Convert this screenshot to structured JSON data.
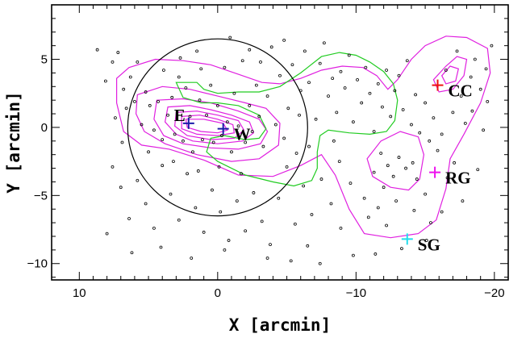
{
  "chart_data": {
    "type": "scatter",
    "xlabel": "X [arcmin]",
    "ylabel": "Y [arcmin]",
    "xlim": [
      12,
      -21
    ],
    "ylim": [
      -11.2,
      9
    ],
    "x_ticks": [
      10,
      0,
      -10,
      -20
    ],
    "x_tick_labels": [
      "10",
      "0",
      "−10",
      "−20"
    ],
    "y_ticks": [
      5,
      0,
      -5,
      -10
    ],
    "y_tick_labels": [
      "5",
      "0",
      "−5",
      "−10"
    ],
    "grid": false,
    "circle": {
      "center": [
        0,
        0
      ],
      "radius": 6.5,
      "color": "#000000"
    },
    "markers": [
      {
        "label": "E",
        "x": 2.1,
        "y": 0.3,
        "color": "#1a1aa8"
      },
      {
        "label": "W",
        "x": -0.4,
        "y": -0.1,
        "color": "#1a1aa8"
      },
      {
        "label": "CC",
        "x": -15.9,
        "y": 3.1,
        "color": "#ee1111"
      },
      {
        "label": "RG",
        "x": -15.7,
        "y": -3.3,
        "color": "#ee11ee"
      },
      {
        "label": "SG",
        "x": -13.7,
        "y": -8.2,
        "color": "#22ddee"
      }
    ],
    "green_contour": [
      [
        3.0,
        3.3
      ],
      [
        1.5,
        3.3
      ],
      [
        1.0,
        2.8
      ],
      [
        0.0,
        2.5
      ],
      [
        -1.5,
        2.6
      ],
      [
        -3.0,
        2.6
      ],
      [
        -4.5,
        3.0
      ],
      [
        -6.0,
        4.0
      ],
      [
        -7.5,
        5.2
      ],
      [
        -8.8,
        5.5
      ],
      [
        -10.0,
        5.3
      ],
      [
        -11.0,
        4.8
      ],
      [
        -12.0,
        4.1
      ],
      [
        -12.7,
        3.2
      ],
      [
        -13.0,
        2.0
      ],
      [
        -12.8,
        0.5
      ],
      [
        -12.2,
        -0.3
      ],
      [
        -11.0,
        -0.5
      ],
      [
        -9.5,
        -0.4
      ],
      [
        -8.0,
        -0.2
      ],
      [
        -7.4,
        -0.6
      ],
      [
        -7.2,
        -1.8
      ],
      [
        -7.2,
        -3.0
      ],
      [
        -6.8,
        -3.9
      ],
      [
        -5.5,
        -4.3
      ],
      [
        -4.0,
        -4.0
      ],
      [
        -2.0,
        -3.5
      ],
      [
        0.0,
        -2.5
      ],
      [
        0.8,
        -1.8
      ],
      [
        0.5,
        -0.8
      ],
      [
        -0.5,
        -0.6
      ],
      [
        -2.0,
        -0.9
      ],
      [
        -3.0,
        -0.8
      ],
      [
        -3.5,
        -0.1
      ],
      [
        -3.0,
        0.9
      ],
      [
        -1.5,
        1.6
      ],
      [
        0.0,
        1.8
      ],
      [
        1.2,
        1.8
      ],
      [
        2.5,
        2.2
      ],
      [
        3.0,
        3.3
      ]
    ],
    "magenta_contours": [
      [
        [
          6.4,
          4.4
        ],
        [
          4.5,
          5.0
        ],
        [
          2.5,
          4.9
        ],
        [
          0.5,
          4.6
        ],
        [
          -1.5,
          3.9
        ],
        [
          -3.2,
          3.3
        ],
        [
          -4.5,
          3.2
        ],
        [
          -6.0,
          3.6
        ],
        [
          -7.5,
          4.2
        ],
        [
          -9.0,
          4.5
        ],
        [
          -10.5,
          4.4
        ],
        [
          -11.5,
          3.8
        ],
        [
          -12.3,
          2.8
        ],
        [
          -13.0,
          3.5
        ],
        [
          -14.0,
          5.0
        ],
        [
          -15.0,
          6.0
        ],
        [
          -16.5,
          6.7
        ],
        [
          -18.0,
          6.6
        ],
        [
          -19.5,
          5.8
        ],
        [
          -19.7,
          4.0
        ],
        [
          -19.0,
          1.8
        ],
        [
          -17.8,
          -0.5
        ],
        [
          -16.8,
          -2.3
        ],
        [
          -16.5,
          -4.5
        ],
        [
          -15.8,
          -6.8
        ],
        [
          -14.5,
          -7.8
        ],
        [
          -12.5,
          -8.1
        ],
        [
          -10.6,
          -7.8
        ],
        [
          -9.5,
          -6.0
        ],
        [
          -8.5,
          -3.5
        ],
        [
          -7.5,
          -2.0
        ],
        [
          -6.0,
          -2.8
        ],
        [
          -4.0,
          -3.6
        ],
        [
          -1.5,
          -3.5
        ],
        [
          1.0,
          -2.4
        ],
        [
          3.5,
          -1.6
        ],
        [
          5.5,
          -1.3
        ],
        [
          6.8,
          -0.3
        ],
        [
          7.3,
          1.8
        ],
        [
          7.3,
          3.6
        ],
        [
          6.4,
          4.4
        ]
      ],
      [
        [
          5.8,
          2.4
        ],
        [
          4.0,
          3.0
        ],
        [
          2.0,
          2.8
        ],
        [
          0.0,
          2.3
        ],
        [
          -2.0,
          1.8
        ],
        [
          -3.5,
          1.4
        ],
        [
          -4.5,
          0.3
        ],
        [
          -4.4,
          -1.3
        ],
        [
          -3.0,
          -2.3
        ],
        [
          -1.0,
          -2.5
        ],
        [
          1.5,
          -2.0
        ],
        [
          3.8,
          -1.2
        ],
        [
          5.3,
          -0.3
        ],
        [
          5.9,
          1.0
        ],
        [
          5.8,
          2.4
        ]
      ],
      [
        [
          4.4,
          2.0
        ],
        [
          2.5,
          2.1
        ],
        [
          0.5,
          1.8
        ],
        [
          -1.5,
          1.2
        ],
        [
          -3.0,
          0.6
        ],
        [
          -3.6,
          -0.3
        ],
        [
          -3.1,
          -1.2
        ],
        [
          -1.5,
          -1.6
        ],
        [
          0.5,
          -1.5
        ],
        [
          2.5,
          -1.2
        ],
        [
          3.9,
          -0.6
        ],
        [
          4.6,
          0.6
        ],
        [
          4.4,
          2.0
        ]
      ],
      [
        [
          3.6,
          1.5
        ],
        [
          2.0,
          1.6
        ],
        [
          0.5,
          1.3
        ],
        [
          -1.0,
          0.9
        ],
        [
          -2.3,
          0.4
        ],
        [
          -2.6,
          -0.4
        ],
        [
          -1.8,
          -1.0
        ],
        [
          0.0,
          -1.2
        ],
        [
          1.8,
          -1.0
        ],
        [
          3.0,
          -0.5
        ],
        [
          3.8,
          0.4
        ],
        [
          3.6,
          1.5
        ]
      ],
      [
        [
          3.0,
          1.1
        ],
        [
          1.5,
          1.2
        ],
        [
          0.0,
          0.9
        ],
        [
          -1.5,
          0.5
        ],
        [
          -1.9,
          -0.2
        ],
        [
          -1.2,
          -0.8
        ],
        [
          0.5,
          -0.9
        ],
        [
          2.2,
          -0.6
        ],
        [
          3.1,
          0.1
        ],
        [
          3.0,
          1.1
        ]
      ],
      [
        [
          2.6,
          0.8
        ],
        [
          1.3,
          0.9
        ],
        [
          0.0,
          0.6
        ],
        [
          -1.1,
          0.2
        ],
        [
          -1.2,
          -0.4
        ],
        [
          0.0,
          -0.6
        ],
        [
          1.5,
          -0.5
        ],
        [
          2.6,
          -0.1
        ],
        [
          2.6,
          0.8
        ]
      ],
      [
        [
          2.3,
          0.6
        ],
        [
          1.0,
          0.6
        ],
        [
          -0.4,
          0.3
        ],
        [
          -0.7,
          -0.2
        ],
        [
          0.0,
          -0.4
        ],
        [
          1.2,
          -0.3
        ],
        [
          2.2,
          0.0
        ],
        [
          2.3,
          0.6
        ]
      ],
      [
        [
          -10.8,
          -2.3
        ],
        [
          -11.8,
          -1.0
        ],
        [
          -13.2,
          -0.3
        ],
        [
          -14.5,
          -0.7
        ],
        [
          -14.9,
          -2.0
        ],
        [
          -14.6,
          -3.8
        ],
        [
          -13.8,
          -4.6
        ],
        [
          -12.5,
          -4.4
        ],
        [
          -11.2,
          -3.6
        ],
        [
          -10.8,
          -2.3
        ]
      ],
      [
        [
          -15.6,
          3.5
        ],
        [
          -16.5,
          4.5
        ],
        [
          -17.3,
          5.2
        ],
        [
          -18.0,
          5.0
        ],
        [
          -17.8,
          3.8
        ],
        [
          -17.0,
          2.8
        ],
        [
          -16.0,
          2.6
        ],
        [
          -15.6,
          3.5
        ]
      ],
      [
        [
          -16.2,
          3.8
        ],
        [
          -16.8,
          4.5
        ],
        [
          -17.4,
          4.3
        ],
        [
          -17.2,
          3.4
        ],
        [
          -16.5,
          3.2
        ],
        [
          -16.2,
          3.8
        ]
      ]
    ],
    "points": [
      [
        8.7,
        5.7
      ],
      [
        7.6,
        4.8
      ],
      [
        7.2,
        5.5
      ],
      [
        6.8,
        2.8
      ],
      [
        6.6,
        1.4
      ],
      [
        6.0,
        1.9
      ],
      [
        5.5,
        0.2
      ],
      [
        5.2,
        2.6
      ],
      [
        4.9,
        1.6
      ],
      [
        4.6,
        -0.2
      ],
      [
        4.3,
        1.9
      ],
      [
        4.0,
        -0.9
      ],
      [
        3.6,
        0.9
      ],
      [
        3.3,
        2.2
      ],
      [
        3.1,
        -0.5
      ],
      [
        2.8,
        3.7
      ],
      [
        2.5,
        -1.0
      ],
      [
        2.3,
        2.9
      ],
      [
        2.0,
        0.8
      ],
      [
        1.8,
        -1.8
      ],
      [
        1.5,
        5.6
      ],
      [
        1.3,
        2.0
      ],
      [
        1.1,
        -0.9
      ],
      [
        0.8,
        0.9
      ],
      [
        0.5,
        3.1
      ],
      [
        0.3,
        -1.1
      ],
      [
        0.0,
        1.6
      ],
      [
        -0.3,
        -0.6
      ],
      [
        -0.5,
        4.4
      ],
      [
        -0.7,
        0.4
      ],
      [
        -1.0,
        -1.8
      ],
      [
        -1.2,
        2.5
      ],
      [
        -1.5,
        0.1
      ],
      [
        -1.8,
        4.9
      ],
      [
        -2.0,
        -1.1
      ],
      [
        -2.3,
        1.6
      ],
      [
        -2.5,
        -0.3
      ],
      [
        -2.8,
        3.1
      ],
      [
        -3.0,
        0.8
      ],
      [
        -3.3,
        -1.4
      ],
      [
        -3.6,
        2.3
      ],
      [
        -3.9,
        5.9
      ],
      [
        -4.2,
        0.2
      ],
      [
        -4.5,
        3.8
      ],
      [
        -4.8,
        -0.8
      ],
      [
        -5.1,
        1.4
      ],
      [
        -5.4,
        4.6
      ],
      [
        -5.7,
        -1.9
      ],
      [
        -6.0,
        2.7
      ],
      [
        -7.4,
        4.7
      ],
      [
        -7.7,
        6.2
      ],
      [
        -8.0,
        2.3
      ],
      [
        -8.3,
        3.6
      ],
      [
        -8.6,
        1.1
      ],
      [
        -8.9,
        4.1
      ],
      [
        -9.2,
        2.9
      ],
      [
        -9.5,
        5.3
      ],
      [
        -9.8,
        0.4
      ],
      [
        -10.1,
        3.5
      ],
      [
        -10.4,
        1.8
      ],
      [
        -10.7,
        4.4
      ],
      [
        -11.0,
        2.5
      ],
      [
        -11.3,
        -0.3
      ],
      [
        -11.6,
        3.2
      ],
      [
        -11.9,
        1.5
      ],
      [
        -12.2,
        4.2
      ],
      [
        -12.5,
        0.8
      ],
      [
        -12.8,
        2.7
      ],
      [
        -13.1,
        3.8
      ],
      [
        -13.4,
        1.3
      ],
      [
        -13.7,
        4.9
      ],
      [
        -14.0,
        0.2
      ],
      [
        -14.3,
        2.4
      ],
      [
        -14.6,
        -0.4
      ],
      [
        -15.0,
        1.8
      ],
      [
        -15.3,
        -1.0
      ],
      [
        -15.6,
        0.7
      ],
      [
        -15.9,
        -1.7
      ],
      [
        -16.2,
        -0.5
      ],
      [
        -16.5,
        4.2
      ],
      [
        -17.0,
        1.1
      ],
      [
        -17.3,
        5.6
      ],
      [
        -17.6,
        2.3
      ],
      [
        -17.9,
        0.3
      ],
      [
        -18.3,
        3.7
      ],
      [
        -18.6,
        5.0
      ],
      [
        -19.0,
        2.8
      ],
      [
        -19.4,
        4.3
      ],
      [
        -19.8,
        6.0
      ],
      [
        -11.8,
        -1.9
      ],
      [
        -12.3,
        -2.8
      ],
      [
        -12.7,
        -3.6
      ],
      [
        -13.1,
        -2.2
      ],
      [
        -13.6,
        -3.0
      ],
      [
        -14.1,
        -2.6
      ],
      [
        -14.4,
        -3.8
      ],
      [
        -12.0,
        -4.4
      ],
      [
        -11.3,
        -3.3
      ],
      [
        -10.6,
        -5.2
      ],
      [
        -11.6,
        -5.9
      ],
      [
        -12.9,
        -5.4
      ],
      [
        -14.2,
        -6.1
      ],
      [
        -15.0,
        -4.9
      ],
      [
        -15.4,
        -7.0
      ],
      [
        -12.2,
        -7.2
      ],
      [
        -10.9,
        -6.6
      ],
      [
        -9.6,
        -4.1
      ],
      [
        -8.8,
        -2.5
      ],
      [
        -8.2,
        -5.6
      ],
      [
        -7.5,
        -3.8
      ],
      [
        -6.8,
        -6.4
      ],
      [
        -6.2,
        -4.3
      ],
      [
        -5.6,
        -7.1
      ],
      [
        -5.0,
        -2.9
      ],
      [
        -4.4,
        -5.2
      ],
      [
        -3.8,
        -8.6
      ],
      [
        -3.2,
        -6.9
      ],
      [
        -2.6,
        -4.8
      ],
      [
        -2.0,
        -7.6
      ],
      [
        -1.4,
        -5.4
      ],
      [
        -0.8,
        -8.3
      ],
      [
        -0.2,
        -6.2
      ],
      [
        0.4,
        -4.6
      ],
      [
        1.0,
        -7.7
      ],
      [
        1.6,
        -5.9
      ],
      [
        2.2,
        -3.4
      ],
      [
        2.8,
        -6.8
      ],
      [
        3.4,
        -4.9
      ],
      [
        4.0,
        -2.8
      ],
      [
        4.6,
        -7.4
      ],
      [
        5.2,
        -5.6
      ],
      [
        5.8,
        -3.9
      ],
      [
        6.4,
        -6.7
      ],
      [
        7.0,
        -4.4
      ],
      [
        7.6,
        -2.9
      ],
      [
        8.0,
        -7.8
      ],
      [
        6.2,
        -9.2
      ],
      [
        4.1,
        -8.8
      ],
      [
        1.9,
        -9.6
      ],
      [
        -0.5,
        -9.0
      ],
      [
        -3.6,
        -9.6
      ],
      [
        -6.5,
        -8.7
      ],
      [
        -8.9,
        -7.4
      ],
      [
        -9.8,
        -9.4
      ],
      [
        -7.4,
        -10.0
      ],
      [
        -5.3,
        -9.8
      ],
      [
        -8.4,
        -1.0
      ],
      [
        -7.1,
        0.6
      ],
      [
        -6.6,
        -1.4
      ],
      [
        -5.9,
        0.9
      ],
      [
        -0.9,
        6.6
      ],
      [
        1.2,
        4.3
      ],
      [
        2.7,
        5.1
      ],
      [
        3.9,
        4.2
      ],
      [
        5.8,
        4.8
      ],
      [
        6.3,
        3.7
      ],
      [
        8.1,
        3.4
      ],
      [
        -2.3,
        5.7
      ],
      [
        -3.1,
        4.8
      ],
      [
        -4.8,
        6.4
      ],
      [
        -6.3,
        5.6
      ],
      [
        -6.6,
        3.3
      ],
      [
        -0.1,
        -2.9
      ],
      [
        1.4,
        -3.2
      ],
      [
        -1.7,
        -3.4
      ],
      [
        3.2,
        -2.5
      ],
      [
        5.0,
        -1.8
      ],
      [
        6.9,
        -1.1
      ],
      [
        7.4,
        0.7
      ],
      [
        -18.4,
        1.2
      ],
      [
        -19.2,
        -0.2
      ],
      [
        -17.1,
        -2.6
      ],
      [
        -16.6,
        -3.7
      ],
      [
        -17.7,
        -5.4
      ],
      [
        -16.2,
        -6.2
      ],
      [
        -15.1,
        -8.3
      ],
      [
        -13.3,
        -8.9
      ],
      [
        -11.4,
        -9.3
      ],
      [
        -18.8,
        -3.1
      ],
      [
        -19.5,
        1.9
      ]
    ]
  }
}
